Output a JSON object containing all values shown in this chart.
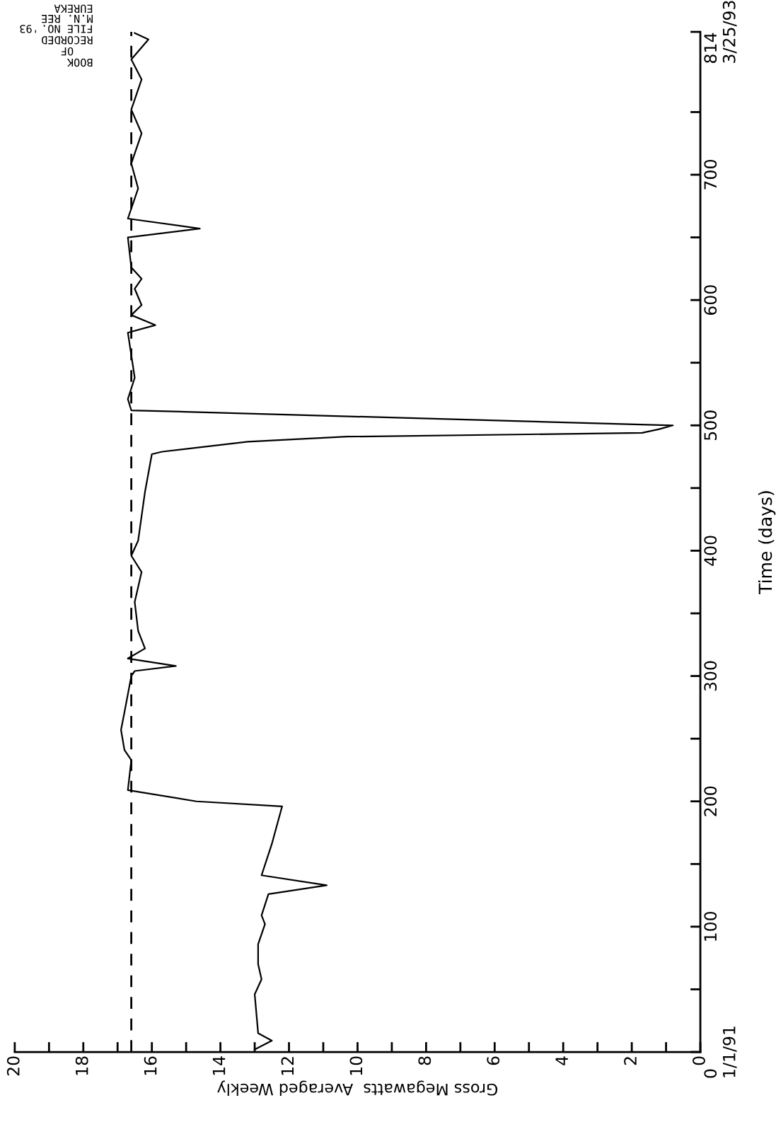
{
  "chart_data": {
    "type": "line",
    "xlabel": "Gross Megawatts  Averaged Weekly",
    "ylabel": "Time (days)",
    "annotations": [
      "EUREKA",
      "M.N. REE",
      "FILE NO.",
      "BOOK",
      "OF",
      "RECORDED",
      "'93"
    ],
    "ylim": [
      0,
      814
    ],
    "yticks": [
      {
        "value": 0,
        "label": "0\n1/1/91"
      },
      {
        "value": 50,
        "label": null
      },
      100,
      {
        "value": 150,
        "label": null
      },
      200,
      {
        "value": 250,
        "label": null
      },
      300,
      {
        "value": 350,
        "label": null
      },
      400,
      {
        "value": 450,
        "label": null
      },
      500,
      {
        "value": 550,
        "label": null
      },
      600,
      {
        "value": 650,
        "label": null
      },
      700,
      {
        "value": 750,
        "label": null
      },
      {
        "value": 814,
        "label": "814\n3/25/93"
      }
    ],
    "xlim": [
      20,
      0
    ],
    "xticks": [
      0,
      {
        "value": 1,
        "label": null
      },
      2,
      {
        "value": 3,
        "label": null
      },
      4,
      {
        "value": 5,
        "label": null
      },
      6,
      {
        "value": 7,
        "label": null
      },
      8,
      {
        "value": 9,
        "label": null
      },
      10,
      {
        "value": 11,
        "label": null
      },
      12,
      {
        "value": 13,
        "label": null
      },
      14,
      {
        "value": 15,
        "label": null
      },
      16,
      {
        "value": 17,
        "label": null
      },
      18,
      {
        "value": 19,
        "label": null
      },
      20
    ],
    "marker": "none",
    "line_style": "solid",
    "ref_lines": [
      {
        "axis": "x",
        "value": 16.6,
        "line_style": "dashed",
        "color": "#000000"
      }
    ],
    "series": [
      {
        "color": "#000000",
        "x": [
          13.0,
          12.5,
          12.9,
          13.0,
          12.8,
          12.9,
          12.9,
          12.7,
          12.8,
          12.6,
          10.9,
          12.8,
          12.5,
          12.2,
          14.7,
          16.7,
          16.6,
          16.8,
          16.9,
          16.8,
          16.6,
          16.5,
          15.3,
          16.7,
          16.2,
          16.4,
          16.5,
          16.3,
          16.6,
          16.4,
          16.2,
          16.0,
          15.7,
          13.2,
          10.3,
          1.7,
          1.2,
          0.8,
          16.6,
          16.7,
          16.5,
          16.7,
          15.9,
          16.6,
          16.3,
          16.5,
          16.3,
          16.6,
          16.7,
          14.6,
          16.7,
          16.4,
          16.6,
          16.3,
          16.6,
          16.3,
          16.6,
          16.1,
          16.5
        ],
        "values": [
          2,
          9,
          15,
          46,
          58,
          70,
          86,
          102,
          109,
          126,
          133,
          141,
          166,
          196,
          200,
          209,
          233,
          241,
          257,
          271,
          300,
          304,
          308,
          314,
          322,
          336,
          359,
          383,
          396,
          408,
          447,
          477,
          479,
          487,
          491,
          494,
          497,
          500,
          512,
          521,
          538,
          574,
          580,
          588,
          596,
          609,
          617,
          626,
          650,
          657,
          665,
          689,
          709,
          733,
          752,
          776,
          792,
          808,
          813
        ]
      }
    ]
  }
}
